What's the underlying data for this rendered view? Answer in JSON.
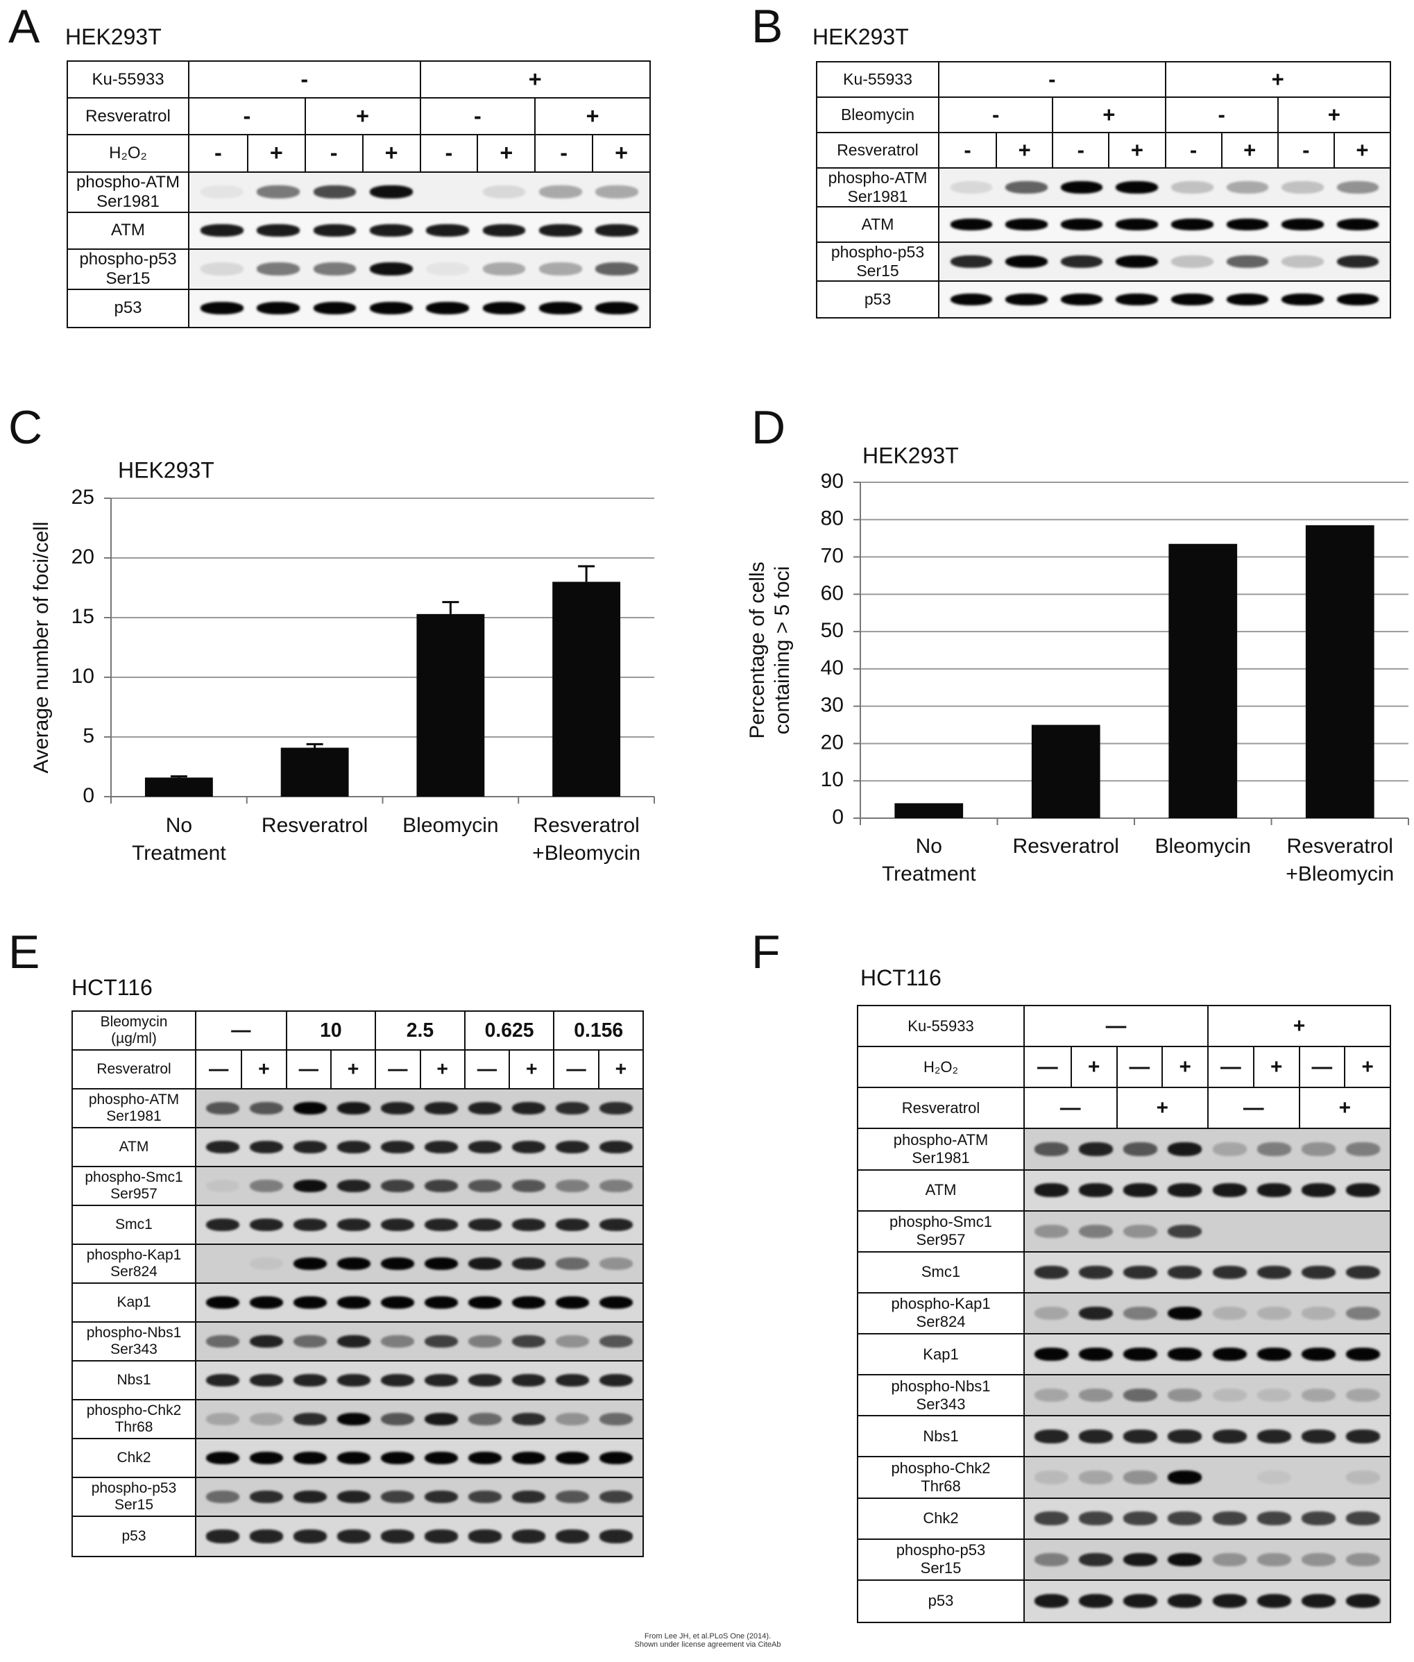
{
  "panels": {
    "A": {
      "letter": "A",
      "cell_line": "HEK293T",
      "conditions": [
        {
          "label": "Ku-55933",
          "groups": [
            "-",
            "+"
          ]
        },
        {
          "label": "Resveratrol",
          "groups": [
            "-",
            "+",
            "-",
            "+"
          ]
        },
        {
          "label": "H₂O₂",
          "groups": [
            "-",
            "+",
            "-",
            "+",
            "-",
            "+",
            "-",
            "+"
          ]
        }
      ],
      "rows": [
        "phospho-ATM Ser1981",
        "ATM",
        "phospho-p53 Ser15",
        "p53"
      ]
    },
    "B": {
      "letter": "B",
      "cell_line": "HEK293T",
      "conditions": [
        {
          "label": "Ku-55933",
          "groups": [
            "-",
            "+"
          ]
        },
        {
          "label": "Bleomycin",
          "groups": [
            "-",
            "+",
            "-",
            "+"
          ]
        },
        {
          "label": "Resveratrol",
          "groups": [
            "-",
            "+",
            "-",
            "+",
            "-",
            "+",
            "-",
            "+"
          ]
        }
      ],
      "rows": [
        "phospho-ATM Ser1981",
        "ATM",
        "phospho-p53 Ser15",
        "p53"
      ]
    },
    "E": {
      "letter": "E",
      "cell_line": "HCT116",
      "conditions": [
        {
          "label": "Bleomycin (µg/ml)",
          "groups": [
            "—",
            "10",
            "2.5",
            "0.625",
            "0.156"
          ]
        },
        {
          "label": "Resveratrol",
          "groups": [
            "—",
            "+",
            "—",
            "+",
            "—",
            "+",
            "—",
            "+",
            "—",
            "+"
          ]
        }
      ],
      "rows": [
        "phospho-ATM Ser1981",
        "ATM",
        "phospho-Smc1 Ser957",
        "Smc1",
        "phospho-Kap1 Ser824",
        "Kap1",
        "phospho-Nbs1 Ser343",
        "Nbs1",
        "phospho-Chk2 Thr68",
        "Chk2",
        "phospho-p53 Ser15",
        "p53"
      ]
    },
    "F": {
      "letter": "F",
      "cell_line": "HCT116",
      "conditions": [
        {
          "label": "Ku-55933",
          "groups": [
            "—",
            "+"
          ]
        },
        {
          "label": "H₂O₂",
          "groups": [
            "—",
            "+",
            "—",
            "+",
            "—",
            "+",
            "—",
            "+"
          ]
        },
        {
          "label": "Resveratrol",
          "groups": [
            "—",
            "+",
            "—",
            "+"
          ]
        }
      ],
      "rows": [
        "phospho-ATM Ser1981",
        "ATM",
        "phospho-Smc1 Ser957",
        "Smc1",
        "phospho-Kap1 Ser824",
        "Kap1",
        "phospho-Nbs1 Ser343",
        "Nbs1",
        "phospho-Chk2 Thr68",
        "Chk2",
        "phospho-p53 Ser15",
        "p53"
      ]
    }
  },
  "chart_data": [
    {
      "type": "bar",
      "letter": "C",
      "title": "HEK293T",
      "y_label": "Average number of foci/cell",
      "categories": [
        "No Treatment",
        "Resveratrol",
        "Bleomycin",
        "Resveratrol +Bleomycin"
      ],
      "values": [
        1.6,
        4.1,
        15.3,
        18.0
      ],
      "errors": [
        0.1,
        0.3,
        1.0,
        1.3
      ],
      "color": "#0a0a0a",
      "ylim": [
        0,
        25
      ],
      "yticks": [
        0,
        5,
        10,
        15,
        20,
        25
      ],
      "grid": true
    },
    {
      "type": "bar",
      "letter": "D",
      "title": "HEK293T",
      "y_label": "Percentage of cells containing > 5 foci",
      "categories": [
        "No Treatment",
        "Resveratrol",
        "Bleomycin",
        "Resveratrol +Bleomycin"
      ],
      "values": [
        4,
        25,
        73.5,
        78.5
      ],
      "color": "#0a0a0a",
      "ylim": [
        0,
        90
      ],
      "yticks": [
        0,
        10,
        20,
        30,
        40,
        50,
        60,
        70,
        80,
        90
      ],
      "grid": true
    }
  ],
  "credit": [
    "From Lee JH, et al.PLoS One (2014).",
    "Shown under license agreement via CiteAb"
  ]
}
